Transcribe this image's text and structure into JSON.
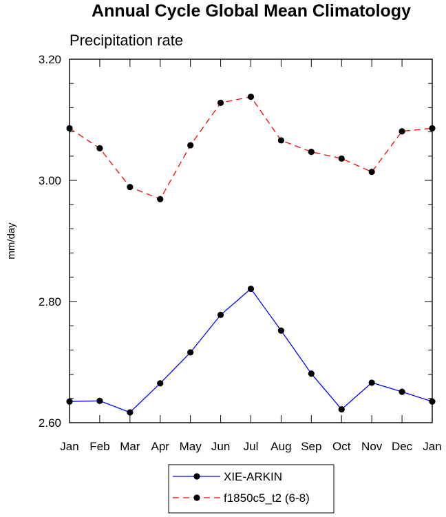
{
  "chart_data": {
    "type": "line",
    "title": "Annual Cycle Global Mean Climatology",
    "subtitle": "Precipitation rate",
    "ylabel": "mm/day",
    "xlabel": "",
    "categories": [
      "Jan",
      "Feb",
      "Mar",
      "Apr",
      "May",
      "Jun",
      "Jul",
      "Aug",
      "Sep",
      "Oct",
      "Nov",
      "Dec",
      "Jan"
    ],
    "ylim": [
      2.6,
      3.2
    ],
    "yticks": [
      {
        "value": 2.6,
        "label": "2.60"
      },
      {
        "value": 2.8,
        "label": "2.80"
      },
      {
        "value": 3.0,
        "label": "3.00"
      },
      {
        "value": 3.2,
        "label": "3.20"
      }
    ],
    "series": [
      {
        "name": "XIE-ARKIN",
        "color": "#0000ff",
        "dash": "solid",
        "values": [
          2.635,
          2.636,
          2.617,
          2.665,
          2.716,
          2.778,
          2.821,
          2.752,
          2.681,
          2.622,
          2.666,
          2.651,
          2.635
        ]
      },
      {
        "name": "f1850c5_t2 (6-8)",
        "color": "#ff0000",
        "dash": "dashed",
        "values": [
          3.086,
          3.053,
          2.989,
          2.969,
          3.058,
          3.128,
          3.138,
          3.066,
          3.047,
          3.036,
          3.014,
          3.081,
          3.086
        ]
      }
    ],
    "legend_position": "bottom-center",
    "grid": false
  }
}
